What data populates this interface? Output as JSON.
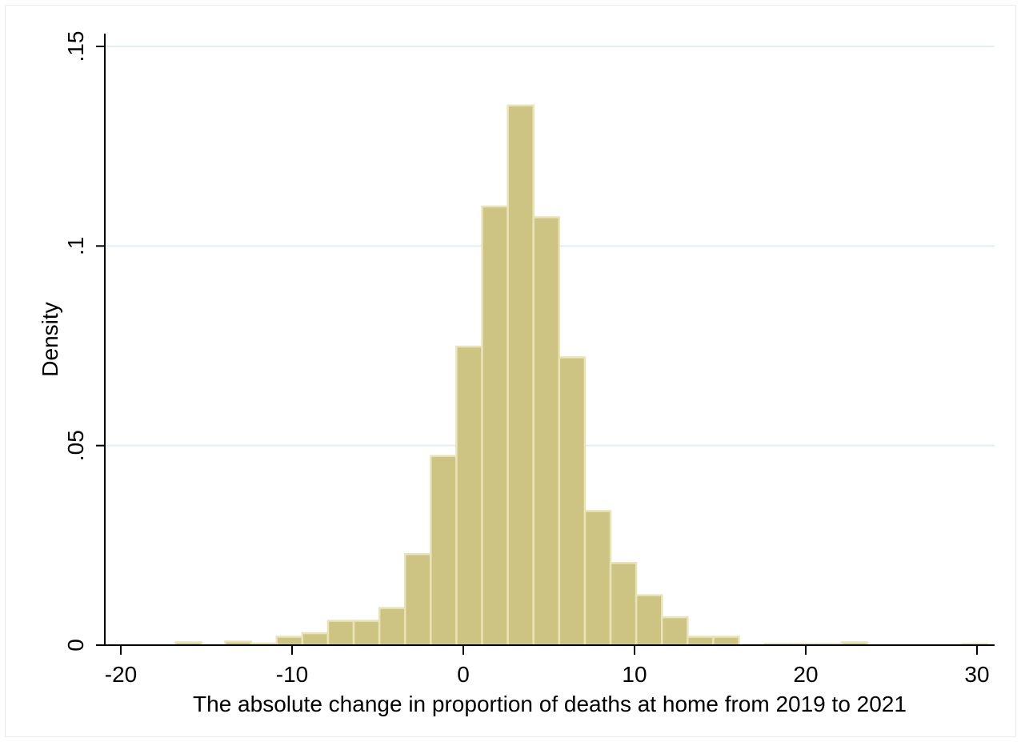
{
  "chart_data": {
    "type": "bar",
    "xlabel": "The absolute change in proportion of deaths at home from 2019 to 2021",
    "ylabel": "Density",
    "xlim": [
      -20,
      30
    ],
    "ylim": [
      0,
      0.15
    ],
    "x_ticks": [
      -20,
      -10,
      0,
      10,
      20,
      30
    ],
    "x_tick_labels": [
      "-20",
      "-10",
      "0",
      "10",
      "20",
      "30"
    ],
    "y_ticks": [
      0,
      0.05,
      0.1,
      0.15
    ],
    "y_tick_labels": [
      "0",
      ".05",
      ".1",
      ".15"
    ],
    "grid": true,
    "bar_color": "#cdc484",
    "bar_edge_color": "#e9e3b8",
    "bins": [
      {
        "x0": -16.8,
        "x1": -15.3,
        "density": 0.0007
      },
      {
        "x0": -13.9,
        "x1": -12.4,
        "density": 0.0009
      },
      {
        "x0": -12.4,
        "x1": -10.9,
        "density": 0.0004
      },
      {
        "x0": -10.9,
        "x1": -9.4,
        "density": 0.0021
      },
      {
        "x0": -9.4,
        "x1": -7.9,
        "density": 0.003
      },
      {
        "x0": -7.9,
        "x1": -6.4,
        "density": 0.0061
      },
      {
        "x0": -6.4,
        "x1": -4.9,
        "density": 0.0061
      },
      {
        "x0": -4.9,
        "x1": -3.4,
        "density": 0.0093
      },
      {
        "x0": -3.4,
        "x1": -1.9,
        "density": 0.0228
      },
      {
        "x0": -1.9,
        "x1": -0.4,
        "density": 0.0474
      },
      {
        "x0": -0.4,
        "x1": 1.1,
        "density": 0.0748
      },
      {
        "x0": 1.1,
        "x1": 2.6,
        "density": 0.1099
      },
      {
        "x0": 2.6,
        "x1": 4.1,
        "density": 0.1352
      },
      {
        "x0": 4.1,
        "x1": 5.6,
        "density": 0.1072
      },
      {
        "x0": 5.6,
        "x1": 7.1,
        "density": 0.0721
      },
      {
        "x0": 7.1,
        "x1": 8.6,
        "density": 0.0336
      },
      {
        "x0": 8.6,
        "x1": 10.1,
        "density": 0.0206
      },
      {
        "x0": 10.1,
        "x1": 11.6,
        "density": 0.0125
      },
      {
        "x0": 11.6,
        "x1": 13.1,
        "density": 0.007
      },
      {
        "x0": 13.1,
        "x1": 14.6,
        "density": 0.0021
      },
      {
        "x0": 14.6,
        "x1": 16.1,
        "density": 0.0021
      },
      {
        "x0": 17.6,
        "x1": 19.1,
        "density": 0.0003
      },
      {
        "x0": 19.1,
        "x1": 20.6,
        "density": 0.0003
      },
      {
        "x0": 20.6,
        "x1": 22.1,
        "density": 0.0003
      },
      {
        "x0": 22.1,
        "x1": 23.6,
        "density": 0.0007
      },
      {
        "x0": 29.1,
        "x1": 30.6,
        "density": 0.0003
      }
    ]
  }
}
